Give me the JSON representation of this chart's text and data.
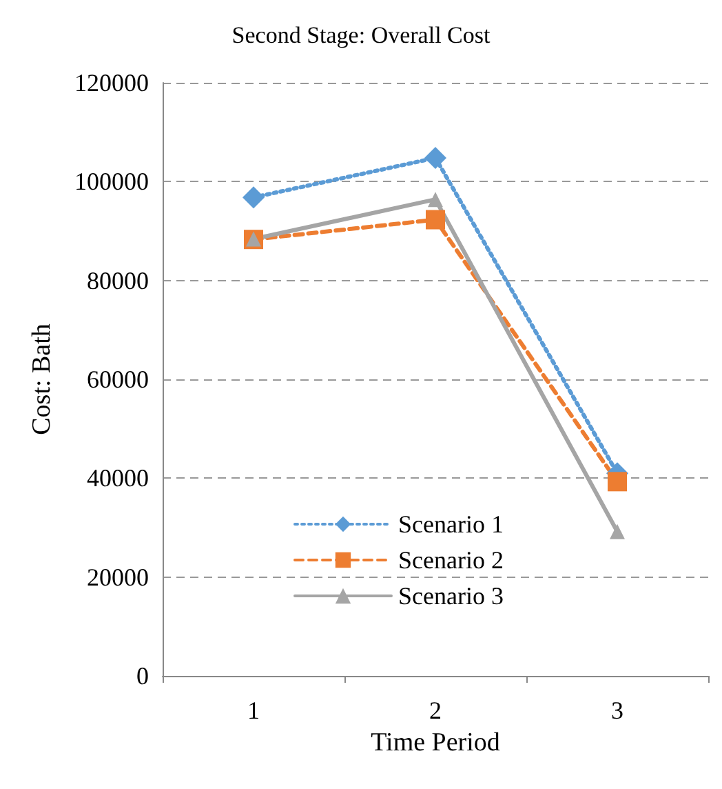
{
  "chart_data": {
    "type": "line",
    "title": "Second Stage: Overall Cost",
    "xlabel": "Time Period",
    "ylabel": "Cost: Bath",
    "categories": [
      "1",
      "2",
      "3"
    ],
    "series": [
      {
        "name": "Scenario 1",
        "color": "#5b9bd5",
        "values": [
          96800,
          104800,
          41000
        ],
        "marker": "diamond",
        "line_style": "dotted"
      },
      {
        "name": "Scenario 2",
        "color": "#ed7d31",
        "values": [
          88300,
          92300,
          39300
        ],
        "marker": "square",
        "line_style": "dashed"
      },
      {
        "name": "Scenario 3",
        "color": "#a5a5a5",
        "values": [
          88400,
          96400,
          29200
        ],
        "marker": "triangle",
        "line_style": "solid"
      }
    ],
    "ylim": [
      0,
      120000
    ],
    "yticks": [
      0,
      20000,
      40000,
      60000,
      80000,
      100000,
      120000
    ],
    "grid": "y",
    "legend": "bottom left"
  }
}
